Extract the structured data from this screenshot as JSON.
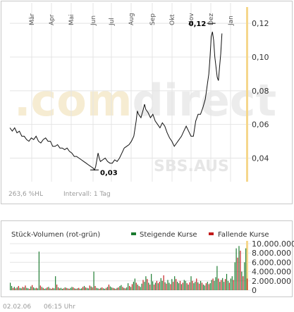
{
  "chart_data": [
    {
      "type": "line",
      "months": [
        "Mär",
        "Apr",
        "Mai",
        "Jun",
        "Jul",
        "Aug",
        "Sep",
        "Okt",
        "Nov",
        "Dez",
        "Jan"
      ],
      "ylim": [
        0.026,
        0.128
      ],
      "yticks": [
        0.04,
        0.06,
        0.08,
        0.1,
        0.12
      ],
      "ytick_labels": [
        "0,04",
        "0,06",
        "0,08",
        "0,10",
        "0,12"
      ],
      "grid": true,
      "series_points": [
        [
          0.0,
          0.058
        ],
        [
          0.01,
          0.056
        ],
        [
          0.02,
          0.058
        ],
        [
          0.03,
          0.055
        ],
        [
          0.04,
          0.056
        ],
        [
          0.05,
          0.053
        ],
        [
          0.06,
          0.053
        ],
        [
          0.07,
          0.051
        ],
        [
          0.08,
          0.05
        ],
        [
          0.09,
          0.052
        ],
        [
          0.1,
          0.051
        ],
        [
          0.11,
          0.053
        ],
        [
          0.12,
          0.05
        ],
        [
          0.13,
          0.049
        ],
        [
          0.14,
          0.051
        ],
        [
          0.15,
          0.052
        ],
        [
          0.16,
          0.05
        ],
        [
          0.17,
          0.05
        ],
        [
          0.18,
          0.047
        ],
        [
          0.19,
          0.047
        ],
        [
          0.2,
          0.048
        ],
        [
          0.21,
          0.046
        ],
        [
          0.22,
          0.046
        ],
        [
          0.23,
          0.045
        ],
        [
          0.24,
          0.046
        ],
        [
          0.25,
          0.044
        ],
        [
          0.26,
          0.043
        ],
        [
          0.27,
          0.041
        ],
        [
          0.28,
          0.041
        ],
        [
          0.29,
          0.04
        ],
        [
          0.3,
          0.039
        ],
        [
          0.31,
          0.038
        ],
        [
          0.32,
          0.037
        ],
        [
          0.33,
          0.036
        ],
        [
          0.34,
          0.035
        ],
        [
          0.35,
          0.034
        ],
        [
          0.355,
          0.033
        ],
        [
          0.36,
          0.035
        ],
        [
          0.365,
          0.039
        ],
        [
          0.37,
          0.043
        ],
        [
          0.375,
          0.04
        ],
        [
          0.38,
          0.038
        ],
        [
          0.39,
          0.039
        ],
        [
          0.4,
          0.04
        ],
        [
          0.41,
          0.038
        ],
        [
          0.42,
          0.037
        ],
        [
          0.43,
          0.037
        ],
        [
          0.44,
          0.039
        ],
        [
          0.45,
          0.038
        ],
        [
          0.46,
          0.04
        ],
        [
          0.47,
          0.043
        ],
        [
          0.48,
          0.046
        ],
        [
          0.49,
          0.047
        ],
        [
          0.5,
          0.048
        ],
        [
          0.51,
          0.05
        ],
        [
          0.52,
          0.053
        ],
        [
          0.53,
          0.062
        ],
        [
          0.535,
          0.068
        ],
        [
          0.54,
          0.066
        ],
        [
          0.55,
          0.064
        ],
        [
          0.56,
          0.069
        ],
        [
          0.565,
          0.072
        ],
        [
          0.57,
          0.069
        ],
        [
          0.58,
          0.067
        ],
        [
          0.59,
          0.064
        ],
        [
          0.6,
          0.066
        ],
        [
          0.61,
          0.062
        ],
        [
          0.62,
          0.06
        ],
        [
          0.63,
          0.058
        ],
        [
          0.64,
          0.061
        ],
        [
          0.65,
          0.059
        ],
        [
          0.66,
          0.055
        ],
        [
          0.67,
          0.052
        ],
        [
          0.68,
          0.05
        ],
        [
          0.69,
          0.047
        ],
        [
          0.7,
          0.049
        ],
        [
          0.71,
          0.051
        ],
        [
          0.72,
          0.053
        ],
        [
          0.73,
          0.056
        ],
        [
          0.74,
          0.059
        ],
        [
          0.75,
          0.056
        ],
        [
          0.76,
          0.053
        ],
        [
          0.77,
          0.053
        ],
        [
          0.78,
          0.062
        ],
        [
          0.79,
          0.066
        ],
        [
          0.8,
          0.066
        ],
        [
          0.81,
          0.07
        ],
        [
          0.82,
          0.075
        ],
        [
          0.83,
          0.085
        ],
        [
          0.835,
          0.09
        ],
        [
          0.84,
          0.1
        ],
        [
          0.845,
          0.112
        ],
        [
          0.85,
          0.115
        ],
        [
          0.855,
          0.11
        ],
        [
          0.86,
          0.1
        ],
        [
          0.865,
          0.094
        ],
        [
          0.87,
          0.088
        ],
        [
          0.875,
          0.086
        ],
        [
          0.88,
          0.094
        ],
        [
          0.885,
          0.102
        ],
        [
          0.89,
          0.114
        ]
      ],
      "high": {
        "x": 0.845,
        "value": 0.12,
        "label": "0,12"
      },
      "low": {
        "x": 0.355,
        "value": 0.033,
        "label": "0,03"
      }
    },
    {
      "type": "bar",
      "title": "Stück-Volumen (rot-grün)",
      "legend": [
        {
          "label": "Steigende Kurse",
          "color": "#1a7a2e"
        },
        {
          "label": "Fallende Kurse",
          "color": "#c21a1a"
        }
      ],
      "ylim": [
        0,
        10000000
      ],
      "yticks": [
        0,
        2000000,
        4000000,
        6000000,
        8000000,
        10000000
      ],
      "ytick_labels": [
        "0",
        "2.000.000",
        "4.000.000",
        "6.000.000",
        "8.000.000",
        "10.000.000"
      ],
      "volume_values": [
        1600000,
        900000,
        500000,
        700000,
        400000,
        600000,
        900000,
        500000,
        400000,
        700000,
        600000,
        1000000,
        500000,
        400000,
        300000,
        800000,
        1100000,
        600000,
        400000,
        500000,
        400000,
        8300000,
        1000000,
        700000,
        500000,
        300000,
        400000,
        600000,
        700000,
        400000,
        300000,
        500000,
        400000,
        3000000,
        1200000,
        600000,
        400000,
        500000,
        300000,
        400000,
        600000,
        500000,
        400000,
        300000,
        500000,
        700000,
        600000,
        400000,
        300000,
        400000,
        500000,
        300000,
        400000,
        700000,
        900000,
        600000,
        500000,
        400000,
        1000000,
        800000,
        600000,
        4000000,
        900000,
        500000,
        400000,
        300000,
        500000,
        600000,
        400000,
        300000,
        500000,
        700000,
        1200000,
        800000,
        600000,
        500000,
        400000,
        300000,
        500000,
        600000,
        900000,
        1100000,
        700000,
        500000,
        400000,
        600000,
        1500000,
        900000,
        700000,
        1300000,
        1800000,
        2500000,
        1600000,
        1200000,
        900000,
        700000,
        1400000,
        2200000,
        1800000,
        3000000,
        2400000,
        1600000,
        1200000,
        3500000,
        1900000,
        1200000,
        1600000,
        2000000,
        1500000,
        1800000,
        2600000,
        2000000,
        3200000,
        1700000,
        1400000,
        2200000,
        1600000,
        1300000,
        2400000,
        1800000,
        3000000,
        2400000,
        1800000,
        1500000,
        2000000,
        1300000,
        1600000,
        2200000,
        2000000,
        1500000,
        1200000,
        1700000,
        3000000,
        2000000,
        1500000,
        1800000,
        2500000,
        1700000,
        1400000,
        2000000,
        1600000,
        1200000,
        1000000,
        1500000,
        1800000,
        1300000,
        1500000,
        2200000,
        2500000,
        2000000,
        2800000,
        5200000,
        2500000,
        1800000,
        2200000,
        2600000,
        1800000,
        2400000,
        3500000,
        2000000,
        1600000,
        2500000,
        3000000,
        2200000,
        6000000,
        9000000,
        7000000,
        9500000,
        8500000,
        4000000,
        3000000,
        6000000,
        9000000,
        2500000
      ],
      "volume_up": [
        1,
        1,
        0,
        1,
        0,
        1,
        0,
        1,
        1,
        0,
        1,
        0,
        1,
        1,
        0,
        1,
        0,
        1,
        1,
        0,
        1,
        1,
        0,
        1,
        0,
        1,
        1,
        0,
        1,
        0,
        1,
        0,
        1,
        1,
        0,
        1,
        0,
        1,
        1,
        0,
        1,
        0,
        1,
        0,
        1,
        1,
        0,
        1,
        0,
        1,
        0,
        1,
        1,
        0,
        1,
        0,
        1,
        1,
        0,
        1,
        0,
        1,
        0,
        1,
        1,
        0,
        1,
        0,
        1,
        1,
        0,
        1,
        0,
        1,
        1,
        0,
        1,
        0,
        1,
        0,
        1,
        1,
        0,
        1,
        0,
        1,
        1,
        0,
        1,
        0,
        1,
        1,
        0,
        1,
        0,
        1,
        1,
        0,
        1,
        1,
        0,
        1,
        0,
        1,
        1,
        0,
        1,
        0,
        1,
        0,
        1,
        1,
        0,
        1,
        0,
        1,
        1,
        0,
        1,
        0,
        1,
        0,
        1,
        1,
        0,
        1,
        0,
        1,
        1,
        0,
        1,
        0,
        1,
        0,
        1,
        1,
        0,
        1,
        0,
        1,
        0,
        1,
        1,
        0,
        1,
        0,
        1,
        1,
        0,
        1,
        1,
        1,
        0,
        1,
        0,
        1,
        1,
        0,
        1,
        1,
        0,
        1,
        1,
        0,
        1,
        1,
        0,
        1,
        0,
        1,
        0,
        1,
        1,
        0
      ]
    }
  ],
  "price_chart": {
    "high_label": "0,12",
    "low_label": "0,03",
    "footer_perf": "263,6 %HL",
    "footer_interval": "Intervall: 1 Tag",
    "watermark_brand": ".comdirect",
    "watermark_symbol": "SBS.AUS"
  },
  "volume_chart": {
    "title": "Stück-Volumen (rot-grün)",
    "legend_up": "Steigende Kurse",
    "legend_down": "Fallende Kurse"
  },
  "footer": {
    "date": "02.02.06",
    "time": "06:15 Uhr"
  },
  "colors": {
    "line": "#111111",
    "grid": "#e4e4e4",
    "up": "#1a7a2e",
    "down": "#c21a1a",
    "highlight": "#f5d78c"
  }
}
